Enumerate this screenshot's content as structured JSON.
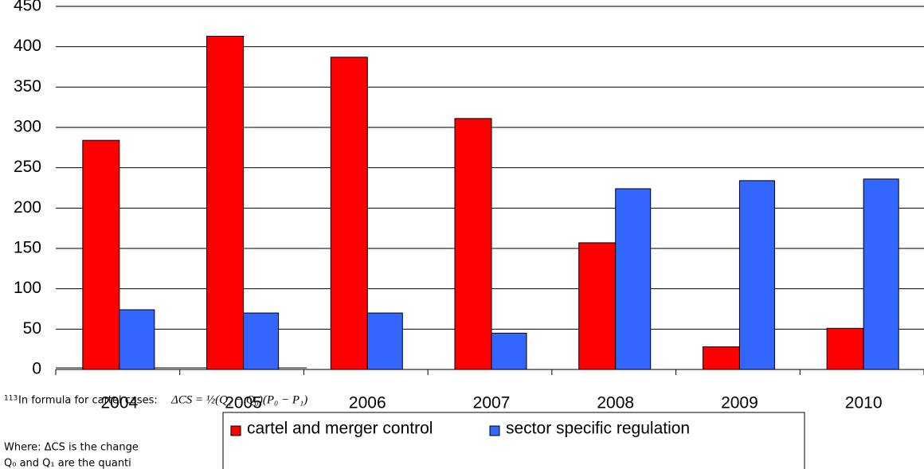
{
  "chart_data": {
    "type": "bar",
    "categories": [
      "2004",
      "2005",
      "2006",
      "2007",
      "2008",
      "2009",
      "2010"
    ],
    "series": [
      {
        "name": "cartel and merger control",
        "color": "#ff0000",
        "values": [
          284,
          413,
          387,
          311,
          157,
          28,
          51
        ]
      },
      {
        "name": "sector specific regulation",
        "color": "#3366ff",
        "values": [
          74,
          70,
          70,
          45,
          224,
          234,
          236
        ]
      }
    ],
    "ylim": [
      0,
      450
    ],
    "yticks": [
      0,
      50,
      100,
      150,
      200,
      250,
      300,
      350,
      400,
      450
    ],
    "grid": true,
    "legend": "bottom"
  },
  "footnote": {
    "number": "113",
    "intro": "In formula for cartel cases:",
    "formula": "ΔCS = ½(Q₁ − Q₀)(P₀ − P₁)",
    "lines": [
      "Where: ΔCS is the change",
      "Q₀ and Q₁ are the quanti"
    ]
  }
}
